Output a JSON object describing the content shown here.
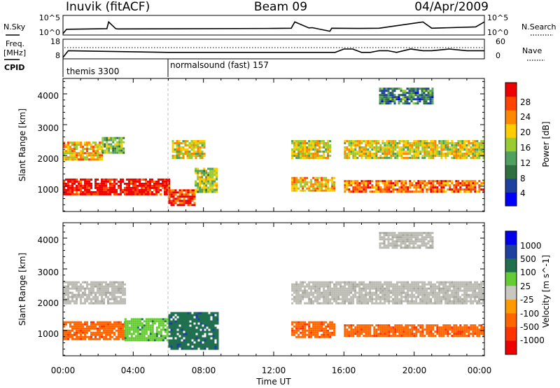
{
  "header": {
    "station": "Inuvik (fitACF)",
    "beam": "Beam 09",
    "date": "04/Apr/2009"
  },
  "noise_panel": {
    "left_label": "N.Sky",
    "right_label": "N.Search",
    "ticks_left": [
      "10^5",
      "10^0"
    ],
    "ticks_right": [
      "10^5",
      "10^0"
    ]
  },
  "freq_panel": {
    "left_label_1": "Freq.",
    "left_label_2": "[MHz]",
    "right_label": "Nave",
    "ticks_left": [
      "18",
      "8"
    ],
    "ticks_right": [
      "60",
      "0"
    ]
  },
  "cpid": {
    "label": "CPID",
    "segments": [
      {
        "name": "themis 3300",
        "start_hour": 0.0
      },
      {
        "name": "normalsound (fast) 157",
        "start_hour": 6.0
      }
    ]
  },
  "colors": {
    "power": [
      "#0000ff",
      "#2040a0",
      "#307040",
      "#50a060",
      "#99cc33",
      "#ffcc00",
      "#ff8800",
      "#ff4400",
      "#ee0000"
    ],
    "velocity": [
      "#0000ee",
      "#2040a0",
      "#207050",
      "#66cc33",
      "#c8c8c0",
      "#ff9900",
      "#ff6600",
      "#ff3300",
      "#ee0000"
    ],
    "ground_scatter": "#bcbcb4"
  },
  "chart_data": [
    {
      "type": "line",
      "title": "N.Sky / N.Search",
      "yscale": "log",
      "ylim": [
        1,
        100000
      ],
      "x": [
        0,
        0.2,
        2.5,
        2.6,
        3.0,
        3.1,
        12.0,
        13.0,
        13.2,
        14.0,
        14.2,
        15.2,
        15.3,
        17.0,
        18.0,
        20.5,
        21.0,
        23.5,
        24.0
      ],
      "series": [
        {
          "name": "N.Sky",
          "values": [
            0,
            20,
            30,
            3000,
            30,
            25,
            35,
            40,
            3000,
            50,
            60,
            5,
            40,
            35,
            40,
            3000,
            40,
            100,
            3000
          ]
        }
      ]
    },
    {
      "type": "line",
      "title": "Freq. / Nave",
      "ylim": [
        8,
        18
      ],
      "x": [
        0,
        0.3,
        6.0,
        15.5,
        16.0,
        16.5,
        17.0,
        17.5,
        18.0,
        18.5,
        19.0,
        19.8,
        20.5,
        21.0,
        22.0,
        23.0,
        24.0
      ],
      "series": [
        {
          "name": "Freq.",
          "values": [
            8,
            12,
            11,
            11,
            13,
            13,
            11,
            11,
            12,
            12,
            11,
            13,
            12,
            12,
            13,
            12,
            12
          ]
        }
      ]
    },
    {
      "type": "heatmap",
      "title": "Power",
      "xlabel": "Time UT",
      "ylabel": "Slant Range [km]",
      "xlim": [
        0,
        24
      ],
      "ylim": [
        180,
        4500
      ],
      "x_ticks": [
        "00:00",
        "04:00",
        "08:00",
        "12:00",
        "16:00",
        "20:00",
        "00:00"
      ],
      "y_ticks": [
        "1000",
        "2000",
        "3000",
        "4000"
      ],
      "colorbar": {
        "label": "Power [dB]",
        "ticks": [
          "28",
          "24",
          "20",
          "16",
          "12",
          "8",
          "4"
        ]
      },
      "regions": [
        {
          "t0": 0.0,
          "t1": 6.0,
          "r0": 750,
          "r1": 1250,
          "value": 28
        },
        {
          "t0": 0.0,
          "t1": 2.2,
          "r0": 1900,
          "r1": 2450,
          "value": 20
        },
        {
          "t0": 2.2,
          "t1": 3.5,
          "r0": 2100,
          "r1": 2600,
          "value": 14
        },
        {
          "t0": 6.0,
          "t1": 7.5,
          "r0": 400,
          "r1": 900,
          "value": 26
        },
        {
          "t0": 7.5,
          "t1": 8.8,
          "r0": 800,
          "r1": 1600,
          "value": 16
        },
        {
          "t0": 6.2,
          "t1": 8.0,
          "r0": 1950,
          "r1": 2500,
          "value": 18
        },
        {
          "t0": 13.0,
          "t1": 15.5,
          "r0": 850,
          "r1": 1300,
          "value": 20
        },
        {
          "t0": 13.0,
          "t1": 15.2,
          "r0": 1900,
          "r1": 2500,
          "value": 18
        },
        {
          "t0": 16.0,
          "t1": 24.0,
          "r0": 800,
          "r1": 1200,
          "value": 24
        },
        {
          "t0": 16.0,
          "t1": 24.0,
          "r0": 1900,
          "r1": 2500,
          "value": 18
        },
        {
          "t0": 18.0,
          "t1": 21.0,
          "r0": 3700,
          "r1": 4200,
          "value": 10
        }
      ]
    },
    {
      "type": "heatmap",
      "title": "Velocity",
      "xlabel": "Time UT",
      "ylabel": "Slant Range [km]",
      "xlim": [
        0,
        24
      ],
      "ylim": [
        180,
        4500
      ],
      "x_ticks": [
        "00:00",
        "04:00",
        "08:00",
        "12:00",
        "16:00",
        "20:00",
        "00:00"
      ],
      "y_ticks": [
        "1000",
        "2000",
        "3000",
        "4000"
      ],
      "colorbar": {
        "label": "Velocity [m s^-1]",
        "ticks": [
          "1000",
          "500",
          "100",
          "25",
          "-25",
          "-100",
          "-500",
          "-1000"
        ]
      },
      "regions": [
        {
          "t0": 0.0,
          "t1": 3.5,
          "r0": 700,
          "r1": 1300,
          "value": -300
        },
        {
          "t0": 3.5,
          "t1": 6.0,
          "r0": 700,
          "r1": 1400,
          "value": 80
        },
        {
          "t0": 6.0,
          "t1": 8.8,
          "r0": 400,
          "r1": 1600,
          "value": 200
        },
        {
          "t0": 0.0,
          "t1": 3.5,
          "r0": 1900,
          "r1": 2600,
          "value": 0
        },
        {
          "t0": 13.0,
          "t1": 15.5,
          "r0": 800,
          "r1": 1300,
          "value": -200
        },
        {
          "t0": 16.0,
          "t1": 24.0,
          "r0": 800,
          "r1": 1200,
          "value": -250
        },
        {
          "t0": 13.0,
          "t1": 24.0,
          "r0": 1900,
          "r1": 2600,
          "value": 0
        },
        {
          "t0": 18.0,
          "t1": 21.0,
          "r0": 3700,
          "r1": 4200,
          "value": 0
        }
      ]
    }
  ]
}
